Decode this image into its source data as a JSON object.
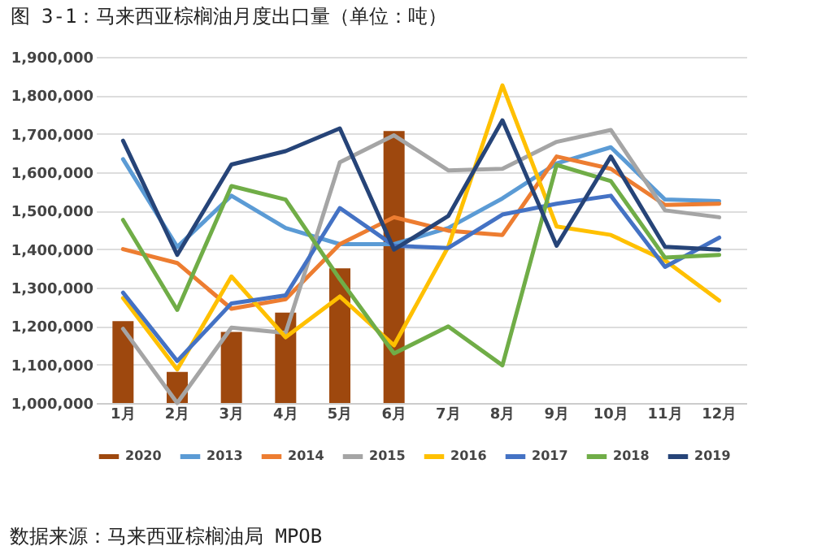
{
  "chart_data": {
    "type": "line",
    "title": "图 3-1：马来西亚棕榈油月度出口量（单位：吨）",
    "annotations": [
      "数据来源：马来西亚棕榈油局 MPOB"
    ],
    "categories": [
      "1月",
      "2月",
      "3月",
      "4月",
      "5月",
      "6月",
      "7月",
      "8月",
      "9月",
      "10月",
      "11月",
      "12月"
    ],
    "series": [
      {
        "name": "2020",
        "type": "bar",
        "color": "#9e480e",
        "values": [
          1213000,
          1081000,
          1185000,
          1235000,
          1350000,
          1707000,
          null,
          null,
          null,
          null,
          null,
          null
        ]
      },
      {
        "name": "2013",
        "color": "#5b9bd5",
        "values": [
          1634000,
          1406000,
          1539000,
          1455000,
          1413000,
          1413000,
          1455000,
          1532000,
          1623000,
          1665000,
          1529000,
          1525000
        ]
      },
      {
        "name": "2014",
        "color": "#ed7d31",
        "values": [
          1400000,
          1364000,
          1245000,
          1270000,
          1413000,
          1483000,
          1448000,
          1437000,
          1641000,
          1609000,
          1515000,
          1518000
        ]
      },
      {
        "name": "2015",
        "color": "#a5a5a5",
        "values": [
          1193000,
          1000000,
          1196000,
          1182000,
          1626000,
          1696000,
          1605000,
          1609000,
          1679000,
          1710000,
          1501000,
          1483000
        ]
      },
      {
        "name": "2016",
        "color": "#ffc000",
        "values": [
          1273000,
          1087000,
          1329000,
          1171000,
          1277000,
          1150000,
          1406000,
          1826000,
          1459000,
          1437000,
          1371000,
          1266000
        ]
      },
      {
        "name": "2017",
        "color": "#4472c4",
        "values": [
          1287000,
          1109000,
          1259000,
          1280000,
          1507000,
          1409000,
          1403000,
          1490000,
          1518000,
          1539000,
          1354000,
          1430000
        ]
      },
      {
        "name": "2018",
        "color": "#70ad47",
        "values": [
          1476000,
          1242000,
          1564000,
          1529000,
          1322000,
          1129000,
          1199000,
          1098000,
          1619000,
          1577000,
          1378000,
          1385000
        ]
      },
      {
        "name": "2019",
        "color": "#264478",
        "values": [
          1682000,
          1385000,
          1620000,
          1655000,
          1714000,
          1399000,
          1486000,
          1735000,
          1409000,
          1641000,
          1406000,
          1399000
        ]
      }
    ],
    "ylim": [
      1000000,
      1900000
    ],
    "yticks": [
      {
        "value": 1000000,
        "label": "1,000,000"
      },
      {
        "value": 1100000,
        "label": "1,100,000"
      },
      {
        "value": 1200000,
        "label": "1,200,000"
      },
      {
        "value": 1300000,
        "label": "1,300,000"
      },
      {
        "value": 1400000,
        "label": "1,400,000"
      },
      {
        "value": 1500000,
        "label": "1,500,000"
      },
      {
        "value": 1600000,
        "label": "1,600,000"
      },
      {
        "value": 1700000,
        "label": "1,700,000"
      },
      {
        "value": 1800000,
        "label": "1,800,000"
      },
      {
        "value": 1900000,
        "label": "1,900,000"
      }
    ],
    "grid": "y",
    "legend": "bottom"
  }
}
